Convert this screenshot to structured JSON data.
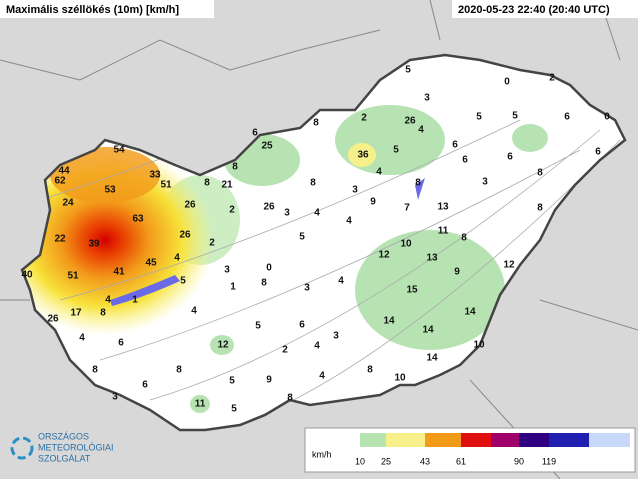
{
  "header": {
    "title": "Maximális széllökés (10m) [km/h]",
    "timestamp": "2020-05-23 22:40 (20:40 UTC)"
  },
  "stations": [
    54,
    44,
    62,
    33,
    53,
    51,
    8,
    21,
    8,
    6,
    25,
    8,
    24,
    63,
    26,
    2,
    26,
    3,
    8,
    36,
    2,
    26,
    5,
    3,
    4,
    5,
    6,
    4,
    8,
    3,
    9,
    7,
    13,
    22,
    39,
    26,
    2,
    4,
    4,
    5,
    11,
    8,
    12,
    10,
    13,
    40,
    51,
    41,
    45,
    4,
    0,
    1,
    3,
    5,
    8,
    3,
    4,
    9,
    12,
    15,
    4,
    1,
    4,
    8,
    26,
    17,
    6,
    5,
    14,
    14,
    14,
    2,
    4,
    3,
    9,
    4,
    8,
    10,
    14,
    10,
    12,
    5,
    4,
    6,
    8,
    3,
    6,
    8,
    11,
    5,
    8,
    0,
    2,
    5,
    5,
    6,
    0,
    6,
    6,
    6,
    8,
    3,
    8
  ],
  "legend": {
    "unit": "km/h",
    "ticks": [
      10,
      25,
      43,
      61,
      90,
      119
    ]
  },
  "logo": {
    "line1": "ORSZÁGOS",
    "line2": "METEOROLÓGIAI",
    "line3": "SZOLGÁLAT"
  }
}
